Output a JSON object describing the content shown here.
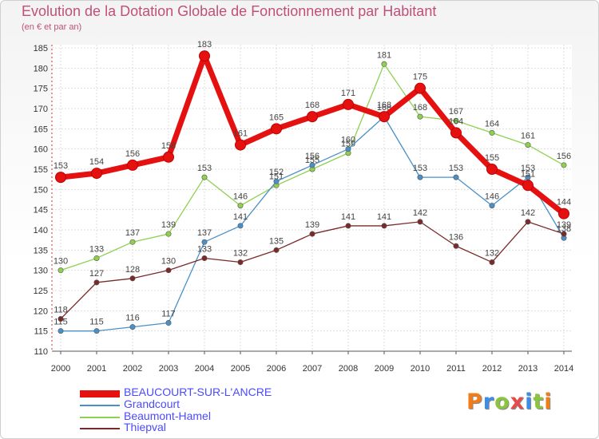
{
  "title": "Evolution de la Dotation Globale de Fonctionnement par Habitant",
  "subtitle": "(en € et par an)",
  "logo": {
    "text": "Proxiti",
    "colors": [
      "#f07d18",
      "#3a8ee6",
      "#8bc53f",
      "#e54b4b",
      "#3a8ee6",
      "#8bc53f",
      "#f07d18"
    ]
  },
  "chart_data": {
    "type": "line",
    "x": [
      2000,
      2001,
      2002,
      2003,
      2004,
      2005,
      2006,
      2007,
      2008,
      2009,
      2010,
      2011,
      2012,
      2013,
      2014
    ],
    "ylim": [
      110,
      185
    ],
    "yticks": [
      110,
      115,
      120,
      125,
      130,
      135,
      140,
      145,
      150,
      155,
      160,
      165,
      170,
      175,
      180,
      185
    ],
    "grid": true,
    "xlabel": "",
    "ylabel": "",
    "series": [
      {
        "name": "Beaumont-Hamel",
        "color": "#8fd14f",
        "values": [
          130,
          133,
          137,
          139,
          153,
          146,
          151,
          155,
          159,
          181,
          168,
          167,
          164,
          161,
          156
        ],
        "labels": [
          "130",
          "133",
          "137",
          "139",
          "153",
          "146",
          "151",
          "155",
          "159",
          "181",
          "168",
          "167",
          "164",
          "161",
          "156"
        ]
      },
      {
        "name": "Grandcourt",
        "color": "#4a90c8",
        "values": [
          115,
          115,
          116,
          117,
          137,
          141,
          152,
          156,
          160,
          168,
          153,
          153,
          146,
          153,
          138
        ],
        "labels": [
          "115",
          "115",
          "116",
          "117",
          "137",
          "141",
          "152",
          "156",
          "160",
          "168",
          "153",
          "153",
          "146",
          "153",
          "138"
        ]
      },
      {
        "name": "Thiepval",
        "color": "#7a2a2a",
        "values": [
          118,
          127,
          128,
          130,
          133,
          132,
          135,
          139,
          141,
          141,
          142,
          136,
          132,
          142,
          139
        ],
        "labels": [
          "118",
          "127",
          "128",
          "130",
          "133",
          "132",
          "135",
          "139",
          "141",
          "141",
          "142",
          "136",
          "132",
          "142",
          "139"
        ]
      },
      {
        "name": "BEAUCOURT-SUR-L'ANCRE",
        "color": "#e51111",
        "values": [
          153,
          154,
          156,
          158,
          183,
          161,
          165,
          168,
          171,
          168,
          175,
          164,
          155,
          151,
          144
        ],
        "labels": [
          "153",
          "154",
          "156",
          "158",
          "183",
          "161",
          "165",
          "168",
          "171",
          "168",
          "175",
          "164",
          "155",
          "151",
          "144"
        ]
      }
    ],
    "legend": [
      {
        "name": "BEAUCOURT-SUR-L'ANCRE",
        "color": "#e51111"
      },
      {
        "name": "Grandcourt",
        "color": "#4a90c8"
      },
      {
        "name": "Beaumont-Hamel",
        "color": "#8fd14f"
      },
      {
        "name": "Thiepval",
        "color": "#7a2a2a"
      }
    ]
  }
}
